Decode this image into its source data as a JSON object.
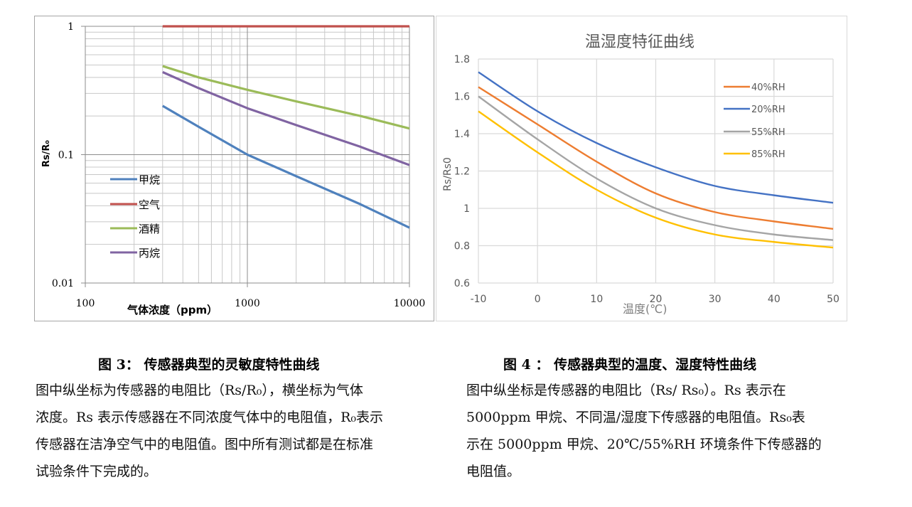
{
  "figure3": {
    "caption": "图 3：   传感器典型的灵敏度特性曲线",
    "description_lines": [
      "图中纵坐标为传感器的电阻比（Rs/R₀），横坐标为气体",
      "浓度。Rs 表示传感器在不同浓度气体中的电阻值，R₀表示",
      "传感器在洁净空气中的电阻值。图中所有测试都是在标准",
      "试验条件下完成的。"
    ]
  },
  "figure4": {
    "caption": "图 4 ： 传感器典型的温度、湿度特性曲线",
    "description_lines": [
      "图中纵坐标是传感器的电阻比（Rs/ Rs₀）。Rs 表示在",
      "5000ppm 甲烷、不同温/湿度下传感器的电阻值。Rs₀表",
      "示在 5000ppm 甲烷、20℃/55%RH 环境条件下传感器的",
      "电阻值。"
    ]
  },
  "chart_data": [
    {
      "type": "line",
      "title": "",
      "xlabel": "气体浓度（ppm）",
      "ylabel": "Rs/R₀",
      "xscale": "log",
      "yscale": "log",
      "xlim": [
        100,
        10000
      ],
      "ylim": [
        0.01,
        1
      ],
      "x_ticks": [
        "100",
        "1000",
        "10000"
      ],
      "y_ticks": [
        "1",
        "0.1",
        "0.01"
      ],
      "grid": true,
      "legend_position": "inside-left",
      "x": [
        300,
        500,
        1000,
        2000,
        5000,
        10000
      ],
      "series": [
        {
          "name": "甲烷",
          "color": "#4f81bd",
          "values": [
            0.24,
            0.165,
            0.1,
            0.068,
            0.041,
            0.027
          ]
        },
        {
          "name": "空气",
          "color": "#c0504d",
          "values": [
            1,
            1,
            1,
            1,
            1,
            1
          ]
        },
        {
          "name": "酒精",
          "color": "#9bbb59",
          "values": [
            0.49,
            0.4,
            0.32,
            0.26,
            0.2,
            0.16
          ]
        },
        {
          "name": "丙烷",
          "color": "#8064a2",
          "values": [
            0.44,
            0.33,
            0.23,
            0.17,
            0.115,
            0.083
          ]
        }
      ]
    },
    {
      "type": "line",
      "title": "温湿度特征曲线",
      "xlabel": "温度(℃)",
      "ylabel": "Rs/Rs0",
      "xlim": [
        -10,
        50
      ],
      "ylim": [
        0.6,
        1.8
      ],
      "x_ticks": [
        "-10",
        "0",
        "10",
        "20",
        "30",
        "40",
        "50"
      ],
      "y_ticks": [
        "0.6",
        "0.8",
        "1",
        "1.2",
        "1.4",
        "1.6",
        "1.8"
      ],
      "grid": true,
      "legend_position": "inside-top-right",
      "x": [
        -10,
        0,
        10,
        20,
        30,
        40,
        50
      ],
      "series": [
        {
          "name": "40%RH",
          "color": "#ed7d31",
          "values": [
            1.65,
            1.45,
            1.25,
            1.08,
            0.98,
            0.93,
            0.89
          ]
        },
        {
          "name": "20%RH",
          "color": "#4472c4",
          "values": [
            1.73,
            1.52,
            1.35,
            1.22,
            1.12,
            1.07,
            1.03
          ]
        },
        {
          "name": "55%RH",
          "color": "#a5a5a5",
          "values": [
            1.6,
            1.37,
            1.16,
            1.0,
            0.91,
            0.86,
            0.83
          ]
        },
        {
          "name": "85%RH",
          "color": "#ffc000",
          "values": [
            1.52,
            1.3,
            1.1,
            0.95,
            0.86,
            0.82,
            0.79
          ]
        }
      ]
    }
  ]
}
